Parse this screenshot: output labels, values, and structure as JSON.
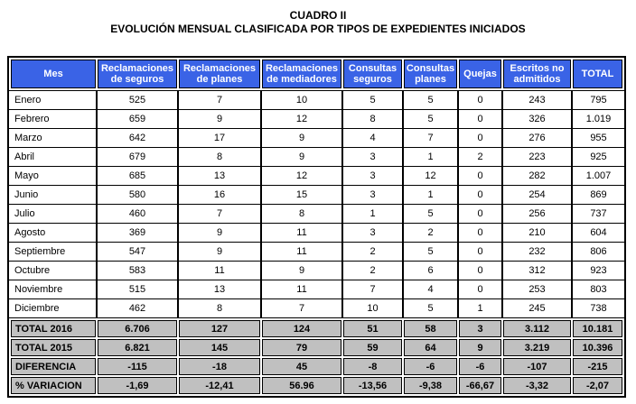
{
  "title": {
    "line1": "CUADRO II",
    "line2": "EVOLUCIÓN MENSUAL CLASIFICADA POR TIPOS DE EXPEDIENTES INICIADOS"
  },
  "table": {
    "columns": [
      "Mes",
      "Reclamaciones de seguros",
      "Reclamaciones de planes",
      "Reclamaciones de mediadores",
      "Consultas seguros",
      "Consultas planes",
      "Quejas",
      "Escritos no admitidos",
      "TOTAL"
    ],
    "rows": [
      {
        "label": "Enero",
        "values": [
          "525",
          "7",
          "10",
          "5",
          "5",
          "0",
          "243",
          "795"
        ]
      },
      {
        "label": "Febrero",
        "values": [
          "659",
          "9",
          "12",
          "8",
          "5",
          "0",
          "326",
          "1.019"
        ]
      },
      {
        "label": "Marzo",
        "values": [
          "642",
          "17",
          "9",
          "4",
          "7",
          "0",
          "276",
          "955"
        ]
      },
      {
        "label": "Abril",
        "values": [
          "679",
          "8",
          "9",
          "3",
          "1",
          "2",
          "223",
          "925"
        ]
      },
      {
        "label": "Mayo",
        "values": [
          "685",
          "13",
          "12",
          "3",
          "12",
          "0",
          "282",
          "1.007"
        ]
      },
      {
        "label": "Junio",
        "values": [
          "580",
          "16",
          "15",
          "3",
          "1",
          "0",
          "254",
          "869"
        ]
      },
      {
        "label": "Julio",
        "values": [
          "460",
          "7",
          "8",
          "1",
          "5",
          "0",
          "256",
          "737"
        ]
      },
      {
        "label": "Agosto",
        "values": [
          "369",
          "9",
          "11",
          "3",
          "2",
          "0",
          "210",
          "604"
        ]
      },
      {
        "label": "Septiembre",
        "values": [
          "547",
          "9",
          "11",
          "2",
          "5",
          "0",
          "232",
          "806"
        ]
      },
      {
        "label": "Octubre",
        "values": [
          "583",
          "11",
          "9",
          "2",
          "6",
          "0",
          "312",
          "923"
        ]
      },
      {
        "label": "Noviembre",
        "values": [
          "515",
          "13",
          "11",
          "7",
          "4",
          "0",
          "253",
          "803"
        ]
      },
      {
        "label": "Diciembre",
        "values": [
          "462",
          "8",
          "7",
          "10",
          "5",
          "1",
          "245",
          "738"
        ]
      }
    ],
    "summary": [
      {
        "label": "TOTAL 2016",
        "values": [
          "6.706",
          "127",
          "124",
          "51",
          "58",
          "3",
          "3.112",
          "10.181"
        ]
      },
      {
        "label": "TOTAL 2015",
        "values": [
          "6.821",
          "145",
          "79",
          "59",
          "64",
          "9",
          "3.219",
          "10.396"
        ]
      },
      {
        "label": "DIFERENCIA",
        "values": [
          "-115",
          "-18",
          "45",
          "-8",
          "-6",
          "-6",
          "-107",
          "-215"
        ]
      },
      {
        "label": "% VARIACION",
        "values": [
          "-1,69",
          "-12,41",
          "56.96",
          "-13,56",
          "-9,38",
          "-66,67",
          "-3,32",
          "-2,07"
        ]
      }
    ],
    "colors": {
      "header_bg": "#3a63e6",
      "header_text": "#ffffff",
      "summary_bg": "#c0c0c0",
      "border": "#000000",
      "text": "#000000"
    }
  }
}
